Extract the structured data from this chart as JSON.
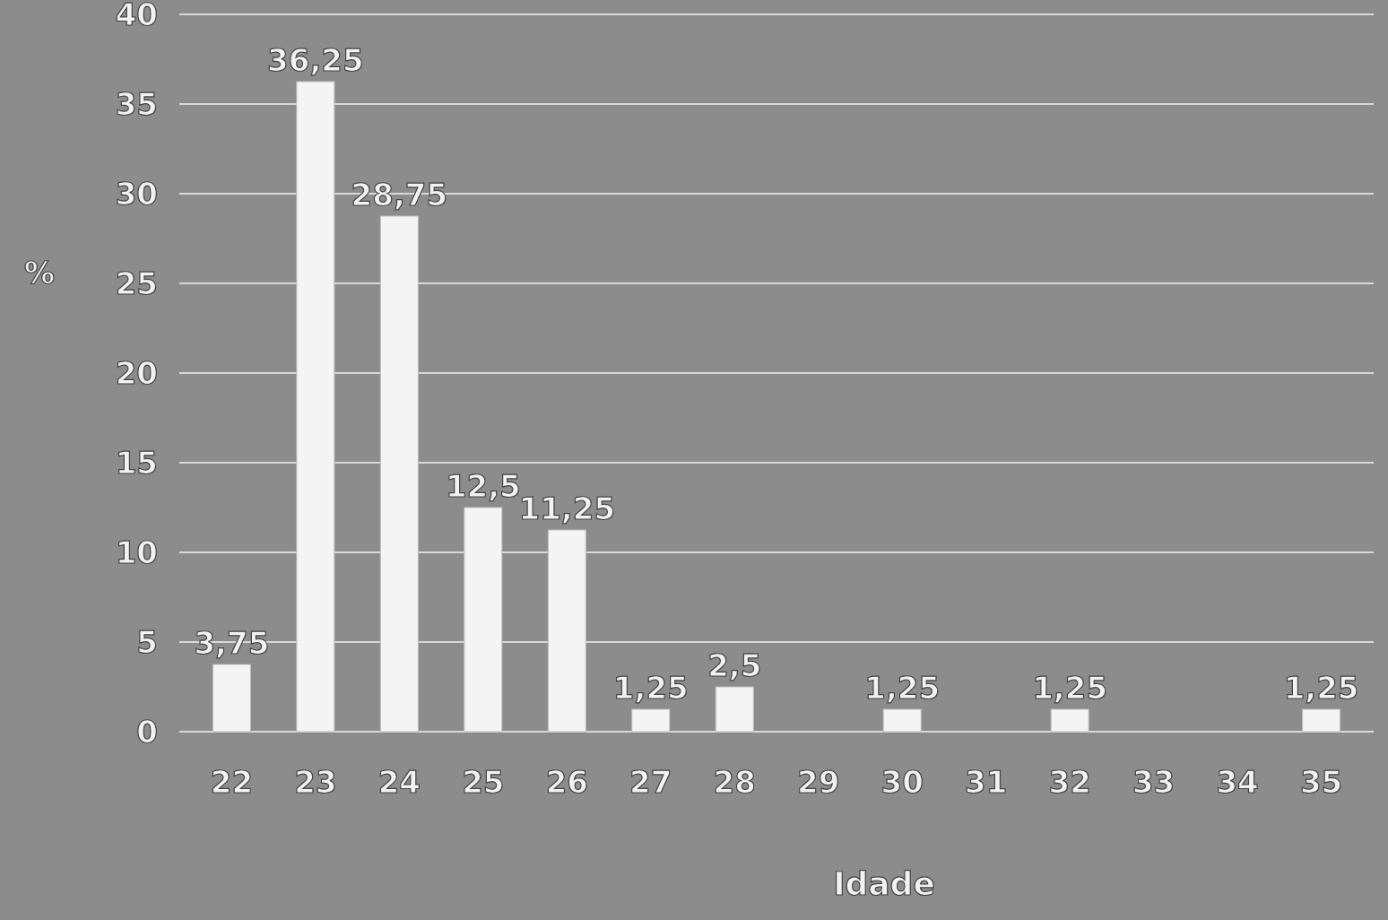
{
  "chart_data": {
    "type": "bar",
    "xlabel": "Idade",
    "ylabel": "%",
    "categories": [
      "22",
      "23",
      "24",
      "25",
      "26",
      "27",
      "28",
      "29",
      "30",
      "31",
      "32",
      "33",
      "34",
      "35"
    ],
    "values": [
      3.75,
      36.25,
      28.75,
      12.5,
      11.25,
      1.25,
      2.5,
      null,
      1.25,
      null,
      1.25,
      null,
      null,
      1.25
    ],
    "value_labels": [
      "3,75",
      "36,25",
      "28,75",
      "12,5",
      "11,25",
      "1,25",
      "2,5",
      null,
      "1,25",
      null,
      "1,25",
      null,
      null,
      "1,25"
    ],
    "color": "#f4f4f4",
    "ylim": [
      0,
      40
    ],
    "yticks": [
      0,
      5,
      10,
      15,
      20,
      25,
      30,
      35,
      40
    ],
    "grid": "y"
  }
}
